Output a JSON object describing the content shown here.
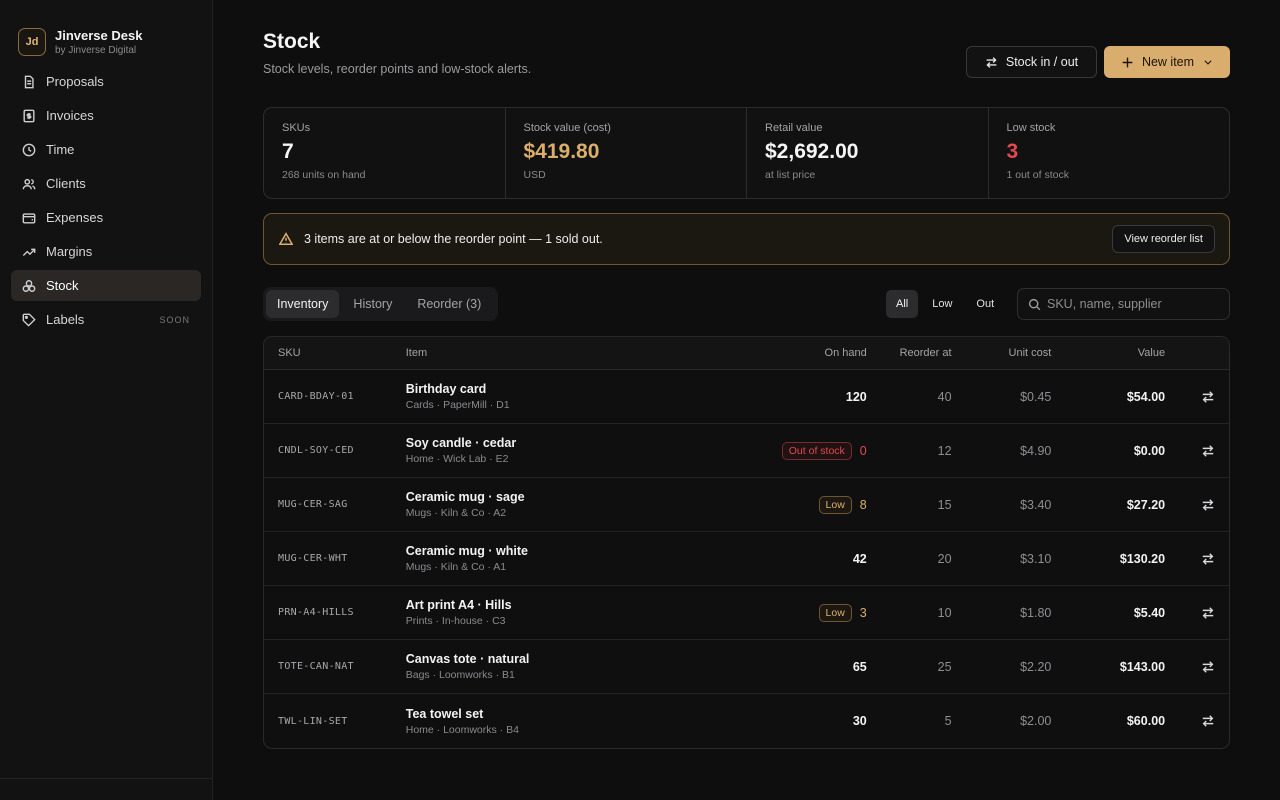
{
  "brand": {
    "logo": "Jd",
    "name": "Jinverse Desk",
    "sub": "by Jinverse Digital"
  },
  "sidebar": {
    "items": [
      {
        "label": "Proposals",
        "icon": "document-icon"
      },
      {
        "label": "Invoices",
        "icon": "invoice-icon"
      },
      {
        "label": "Time",
        "icon": "clock-icon"
      },
      {
        "label": "Clients",
        "icon": "users-icon"
      },
      {
        "label": "Expenses",
        "icon": "wallet-icon"
      },
      {
        "label": "Margins",
        "icon": "trend-icon"
      },
      {
        "label": "Stock",
        "icon": "boxes-icon",
        "active": true
      },
      {
        "label": "Labels",
        "icon": "tag-icon",
        "badge": "SOON"
      }
    ]
  },
  "page": {
    "title": "Stock",
    "subtitle": "Stock levels, reorder points and low-stock alerts.",
    "stock_button": "Stock in / out",
    "new_button": "New item"
  },
  "stats": [
    {
      "label": "SKUs",
      "value": "7",
      "sub": "268 units on hand"
    },
    {
      "label": "Stock value (cost)",
      "value": "$419.80",
      "sub": "USD"
    },
    {
      "label": "Retail value",
      "value": "$2,692.00",
      "sub": "at list price"
    },
    {
      "label": "Low stock",
      "value": "3",
      "sub": "1 out of stock"
    }
  ],
  "alert": {
    "text": "3 items are at or below the reorder point — 1 sold out.",
    "button": "View reorder list"
  },
  "tabs": [
    "Inventory",
    "History",
    "Reorder (3)"
  ],
  "filters": [
    "All",
    "Low",
    "Out"
  ],
  "search": {
    "placeholder": "SKU, name, supplier"
  },
  "table": {
    "headers": {
      "sku": "SKU",
      "item": "Item",
      "onhand": "On hand",
      "reorder": "Reorder at",
      "unit": "Unit cost",
      "value": "Value"
    },
    "rows": [
      {
        "sku": "CARD-BDAY-01",
        "name": "Birthday card",
        "meta": "Cards · PaperMill · D1",
        "badge": "",
        "onhand": "120",
        "reorder": "40",
        "unit": "$0.45",
        "value": "$54.00"
      },
      {
        "sku": "CNDL-SOY-CED",
        "name": "Soy candle · cedar",
        "meta": "Home · Wick Lab · E2",
        "badge": "Out of stock",
        "onhand": "0",
        "reorder": "12",
        "unit": "$4.90",
        "value": "$0.00"
      },
      {
        "sku": "MUG-CER-SAG",
        "name": "Ceramic mug · sage",
        "meta": "Mugs · Kiln & Co · A2",
        "badge": "Low",
        "onhand": "8",
        "reorder": "15",
        "unit": "$3.40",
        "value": "$27.20"
      },
      {
        "sku": "MUG-CER-WHT",
        "name": "Ceramic mug · white",
        "meta": "Mugs · Kiln & Co · A1",
        "badge": "",
        "onhand": "42",
        "reorder": "20",
        "unit": "$3.10",
        "value": "$130.20"
      },
      {
        "sku": "PRN-A4-HILLS",
        "name": "Art print A4 · Hills",
        "meta": "Prints · In-house · C3",
        "badge": "Low",
        "onhand": "3",
        "reorder": "10",
        "unit": "$1.80",
        "value": "$5.40"
      },
      {
        "sku": "TOTE-CAN-NAT",
        "name": "Canvas tote · natural",
        "meta": "Bags · Loomworks · B1",
        "badge": "",
        "onhand": "65",
        "reorder": "25",
        "unit": "$2.20",
        "value": "$143.00"
      },
      {
        "sku": "TWL-LIN-SET",
        "name": "Tea towel set",
        "meta": "Home · Loomworks · B4",
        "badge": "",
        "onhand": "30",
        "reorder": "5",
        "unit": "$2.00",
        "value": "$60.00"
      }
    ]
  },
  "colors": {
    "accent": "#d9ad6e",
    "danger": "#e5484d",
    "background": "#0e0e0f"
  }
}
